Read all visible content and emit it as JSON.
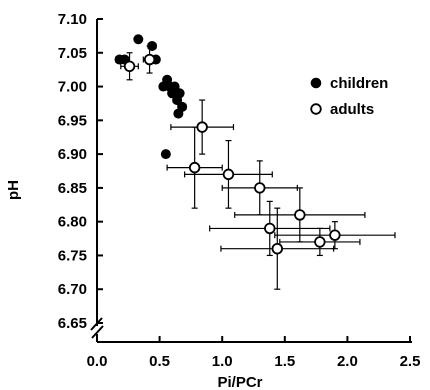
{
  "chart_data": {
    "type": "scatter",
    "title": "",
    "xlabel": "Pi/PCr",
    "ylabel": "pH",
    "xlim": [
      0.0,
      2.5
    ],
    "ylim": [
      6.65,
      7.1
    ],
    "x_ticks": [
      "0.0",
      "0.5",
      "1.0",
      "1.5",
      "2.0",
      "2.5"
    ],
    "y_ticks": [
      "7.10",
      "7.05",
      "7.00",
      "6.95",
      "6.90",
      "6.85",
      "6.80",
      "6.75",
      "6.70",
      "6.65"
    ],
    "axis_break": "y",
    "grid": false,
    "legend_position": "top-right",
    "series": [
      {
        "name": "children",
        "marker": "filled-circle",
        "color": "#000000",
        "points": [
          {
            "x": 0.18,
            "y": 7.04,
            "xerr": 0.03,
            "yerr": 0.005
          },
          {
            "x": 0.22,
            "y": 7.04,
            "xerr": 0.03,
            "yerr": 0.005
          },
          {
            "x": 0.33,
            "y": 7.07,
            "xerr": 0.02,
            "yerr": 0.005
          },
          {
            "x": 0.44,
            "y": 7.06,
            "xerr": 0.03,
            "yerr": 0.005
          },
          {
            "x": 0.47,
            "y": 7.04,
            "xerr": 0.02,
            "yerr": 0.005
          },
          {
            "x": 0.53,
            "y": 7.0,
            "xerr": 0.02,
            "yerr": 0.005
          },
          {
            "x": 0.56,
            "y": 7.01,
            "xerr": 0.02,
            "yerr": 0.005
          },
          {
            "x": 0.58,
            "y": 7.0,
            "xerr": 0.02,
            "yerr": 0.005
          },
          {
            "x": 0.6,
            "y": 6.99,
            "xerr": 0.02,
            "yerr": 0.005
          },
          {
            "x": 0.62,
            "y": 7.0,
            "xerr": 0.02,
            "yerr": 0.005
          },
          {
            "x": 0.64,
            "y": 6.98,
            "xerr": 0.03,
            "yerr": 0.005
          },
          {
            "x": 0.66,
            "y": 6.99,
            "xerr": 0.02,
            "yerr": 0.005
          },
          {
            "x": 0.68,
            "y": 6.97,
            "xerr": 0.03,
            "yerr": 0.005
          },
          {
            "x": 0.65,
            "y": 6.96,
            "xerr": 0.02,
            "yerr": 0.005
          },
          {
            "x": 0.55,
            "y": 6.9,
            "xerr": 0.0,
            "yerr": 0.0
          }
        ]
      },
      {
        "name": "adults",
        "marker": "open-circle",
        "color": "#000000",
        "points": [
          {
            "x": 0.26,
            "y": 7.03,
            "xerr": 0.07,
            "yerr": 0.02
          },
          {
            "x": 0.42,
            "y": 7.04,
            "xerr": 0.05,
            "yerr": 0.02
          },
          {
            "x": 0.84,
            "y": 6.94,
            "xerr": 0.25,
            "yerr": 0.04
          },
          {
            "x": 0.78,
            "y": 6.88,
            "xerr": 0.22,
            "yerr": 0.06
          },
          {
            "x": 1.05,
            "y": 6.87,
            "xerr": 0.35,
            "yerr": 0.05
          },
          {
            "x": 1.3,
            "y": 6.85,
            "xerr": 0.3,
            "yerr": 0.04
          },
          {
            "x": 1.62,
            "y": 6.81,
            "xerr": 0.52,
            "yerr": 0.04
          },
          {
            "x": 1.38,
            "y": 6.79,
            "xerr": 0.48,
            "yerr": 0.04
          },
          {
            "x": 1.44,
            "y": 6.76,
            "xerr": 0.45,
            "yerr": 0.06
          },
          {
            "x": 1.78,
            "y": 6.77,
            "xerr": 0.32,
            "yerr": 0.02
          },
          {
            "x": 1.9,
            "y": 6.78,
            "xerr": 0.48,
            "yerr": 0.02
          }
        ]
      }
    ]
  }
}
